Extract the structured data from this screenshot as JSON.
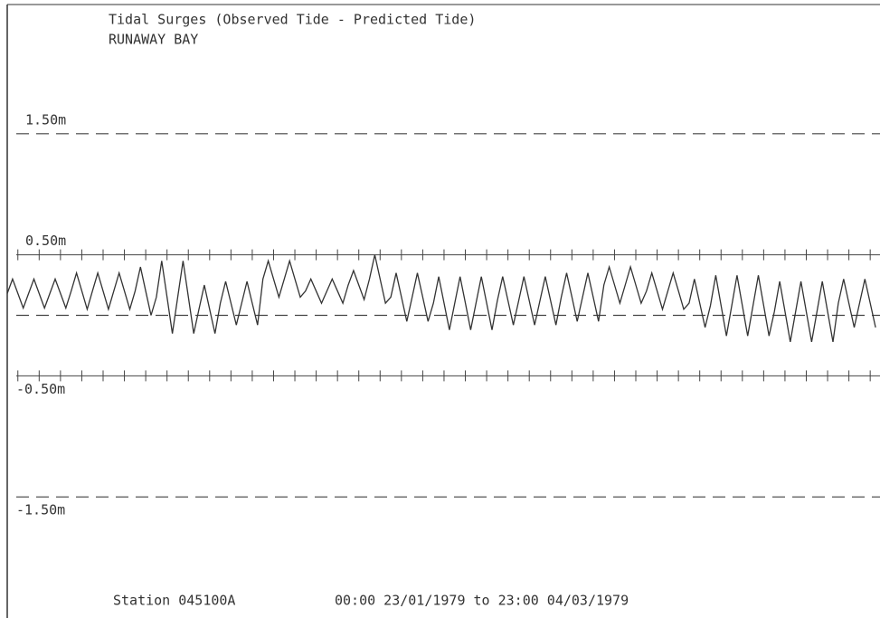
{
  "chart_data": {
    "type": "line",
    "title": "Tidal Surges (Observed Tide - Predicted Tide)",
    "subtitle": "RUNAWAY BAY",
    "station": "Station 045100A",
    "period": "00:00 23/01/1979 to 23:00 04/03/1979",
    "color": "#333333",
    "xlim": [
      0,
      983
    ],
    "ylim": [
      -2.5,
      2.5
    ],
    "yticks": [
      {
        "value": 1.5,
        "label": "1.50m"
      },
      {
        "value": 0.5,
        "label": "0.50m"
      },
      {
        "value": -0.5,
        "label": "-0.50m"
      },
      {
        "value": -1.5,
        "label": "-1.50m"
      }
    ],
    "dashed_rows": [
      1.5,
      0,
      -1.5
    ],
    "cross_rows": [
      0.5,
      -0.5
    ],
    "xticks": [
      0,
      24,
      48,
      72,
      96,
      120,
      144,
      168,
      192,
      216,
      240,
      264,
      288,
      312,
      336,
      360,
      384,
      408,
      432,
      456,
      480,
      504,
      528,
      552,
      576,
      600,
      624,
      648,
      672,
      696,
      720,
      744,
      768,
      792,
      816,
      840,
      864,
      888,
      912,
      936,
      960
    ],
    "x": [
      0,
      6,
      12,
      18,
      24,
      30,
      36,
      42,
      48,
      54,
      60,
      66,
      72,
      78,
      84,
      90,
      96,
      102,
      108,
      114,
      120,
      126,
      132,
      138,
      144,
      150,
      156,
      162,
      168,
      174,
      180,
      186,
      192,
      198,
      204,
      210,
      216,
      222,
      228,
      234,
      240,
      246,
      252,
      258,
      264,
      270,
      276,
      282,
      288,
      294,
      300,
      306,
      312,
      318,
      324,
      330,
      336,
      342,
      348,
      354,
      360,
      366,
      372,
      378,
      384,
      390,
      396,
      402,
      408,
      414,
      420,
      426,
      432,
      438,
      444,
      450,
      456,
      462,
      468,
      474,
      480,
      486,
      492,
      498,
      504,
      510,
      516,
      522,
      528,
      534,
      540,
      546,
      552,
      558,
      564,
      570,
      576,
      582,
      588,
      594,
      600,
      606,
      612,
      618,
      624,
      630,
      636,
      642,
      648,
      654,
      660,
      666,
      672,
      678,
      684,
      690,
      696,
      702,
      708,
      714,
      720,
      726,
      732,
      738,
      744,
      750,
      756,
      762,
      768,
      774,
      780,
      786,
      792,
      798,
      804,
      810,
      816,
      822,
      828,
      834,
      840,
      846,
      852,
      858,
      864,
      870,
      876,
      882,
      888,
      894,
      900,
      906,
      912,
      918,
      924,
      930,
      936,
      942,
      948,
      954,
      960,
      966,
      972,
      978
    ],
    "values": [
      0.18,
      0.3,
      0.18,
      0.06,
      0.18,
      0.3,
      0.18,
      0.06,
      0.18,
      0.3,
      0.18,
      0.06,
      0.2,
      0.35,
      0.2,
      0.05,
      0.2,
      0.35,
      0.2,
      0.05,
      0.2,
      0.35,
      0.2,
      0.05,
      0.2,
      0.4,
      0.2,
      0,
      0.15,
      0.45,
      0.15,
      -0.15,
      0.15,
      0.45,
      0.15,
      -0.15,
      0.05,
      0.25,
      0.05,
      -0.15,
      0.1,
      0.28,
      0.1,
      -0.08,
      0.1,
      0.28,
      0.1,
      -0.08,
      0.3,
      0.45,
      0.3,
      0.15,
      0.3,
      0.45,
      0.3,
      0.15,
      0.2,
      0.3,
      0.2,
      0.1,
      0.2,
      0.3,
      0.2,
      0.1,
      0.25,
      0.37,
      0.25,
      0.13,
      0.3,
      0.5,
      0.3,
      0.1,
      0.15,
      0.35,
      0.15,
      -0.05,
      0.15,
      0.35,
      0.15,
      -0.05,
      0.1,
      0.32,
      0.1,
      -0.12,
      0.1,
      0.32,
      0.1,
      -0.12,
      0.1,
      0.32,
      0.1,
      -0.12,
      0.12,
      0.32,
      0.12,
      -0.08,
      0.12,
      0.32,
      0.12,
      -0.08,
      0.12,
      0.32,
      0.12,
      -0.08,
      0.15,
      0.35,
      0.15,
      -0.05,
      0.15,
      0.35,
      0.15,
      -0.05,
      0.25,
      0.4,
      0.25,
      0.1,
      0.25,
      0.4,
      0.25,
      0.1,
      0.2,
      0.35,
      0.2,
      0.05,
      0.2,
      0.35,
      0.2,
      0.05,
      0.1,
      0.3,
      0.1,
      -0.1,
      0.08,
      0.33,
      0.08,
      -0.17,
      0.08,
      0.33,
      0.08,
      -0.17,
      0.08,
      0.33,
      0.08,
      -0.17,
      0.03,
      0.28,
      0.03,
      -0.22,
      0.03,
      0.28,
      0.03,
      -0.22,
      0.03,
      0.28,
      0.03,
      -0.22,
      0.1,
      0.3,
      0.1,
      -0.1,
      0.1,
      0.3,
      0.1,
      -0.1
    ]
  }
}
